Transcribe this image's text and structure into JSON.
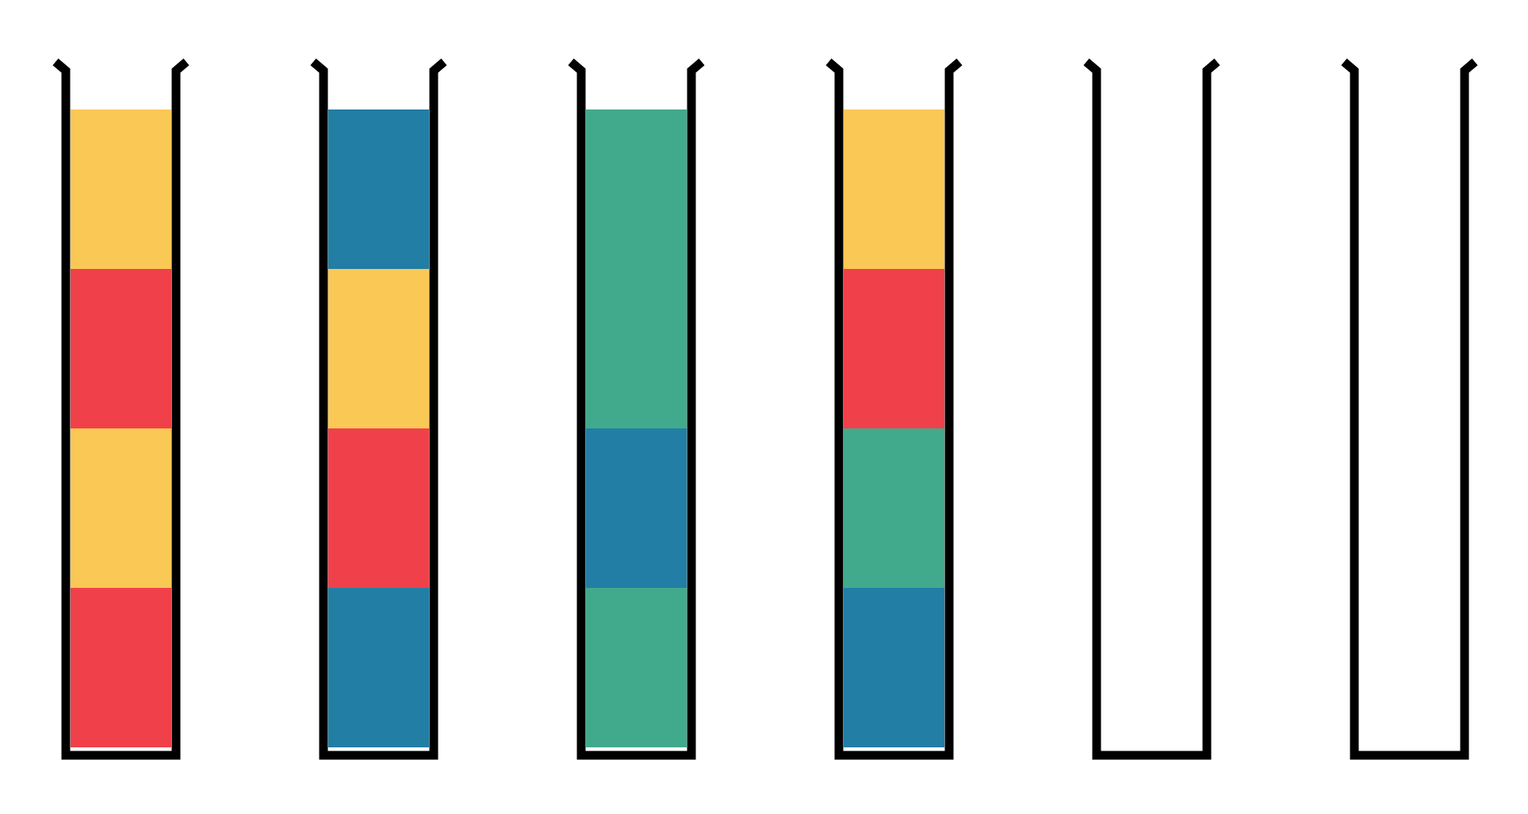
{
  "game": {
    "capacity": 4,
    "colors": {
      "yellow": "#FAC855",
      "red": "#F0414A",
      "blue": "#227EA4",
      "green": "#42AA8C"
    },
    "tubes": [
      {
        "id": "tube-1",
        "layers_top_to_bottom": [
          "yellow",
          "red",
          "yellow",
          "red"
        ]
      },
      {
        "id": "tube-2",
        "layers_top_to_bottom": [
          "blue",
          "yellow",
          "red",
          "blue"
        ]
      },
      {
        "id": "tube-3",
        "layers_top_to_bottom": [
          "green",
          "green",
          "blue",
          "green"
        ]
      },
      {
        "id": "tube-4",
        "layers_top_to_bottom": [
          "yellow",
          "red",
          "green",
          "blue"
        ]
      },
      {
        "id": "tube-5",
        "layers_top_to_bottom": []
      },
      {
        "id": "tube-6",
        "layers_top_to_bottom": []
      }
    ]
  }
}
